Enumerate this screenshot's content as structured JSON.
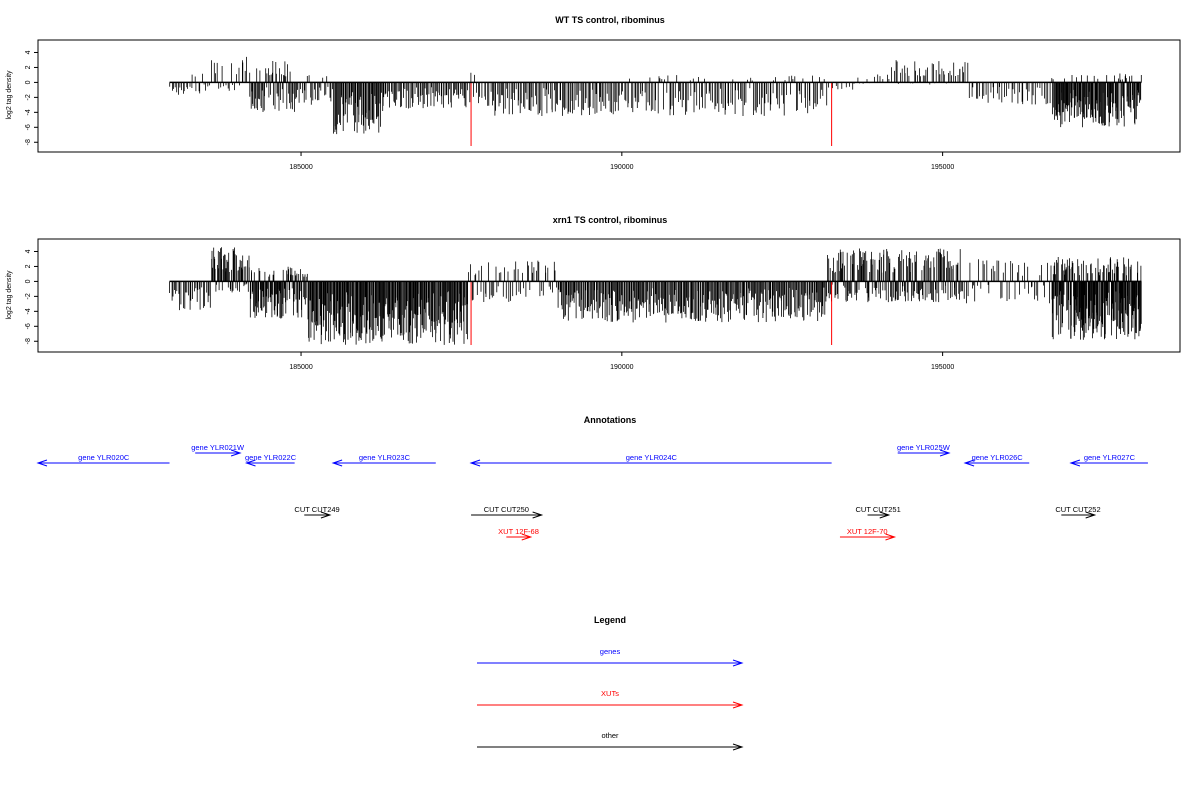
{
  "colors": {
    "gene": "#0000ff",
    "xut": "#ff0000",
    "other": "#000000",
    "marker": "#ff0000",
    "frame": "#000000"
  },
  "chart_data": [
    {
      "type": "bar",
      "title": "WT TS control, ribominus",
      "ylabel": "log2 tag density",
      "xlim": [
        180900,
        198700
      ],
      "ylim": [
        -8.5,
        5
      ],
      "xticks": [
        "185000",
        "190000",
        "195000"
      ],
      "yticks": [
        "4",
        "2",
        "0",
        "-2",
        "-4",
        "-6",
        "-8"
      ],
      "marker_positions": [
        187650,
        193270
      ],
      "marker_value": -8.5,
      "profile": [
        {
          "from": 182950,
          "to": 183300,
          "min": -2.2,
          "max": 0,
          "n": 14
        },
        {
          "from": 183300,
          "to": 183600,
          "min": -1.5,
          "max": 1.2,
          "n": 10
        },
        {
          "from": 183600,
          "to": 184200,
          "min": -1.2,
          "max": 3.6,
          "n": 22
        },
        {
          "from": 184200,
          "to": 184900,
          "min": -4,
          "max": 3,
          "n": 55
        },
        {
          "from": 184900,
          "to": 185500,
          "min": -3,
          "max": 1,
          "n": 28
        },
        {
          "from": 185500,
          "to": 186300,
          "min": -7,
          "max": 0,
          "n": 62
        },
        {
          "from": 186300,
          "to": 187600,
          "min": -3.5,
          "max": 0,
          "n": 70
        },
        {
          "from": 187600,
          "to": 187900,
          "min": -3,
          "max": 2.1,
          "n": 10
        },
        {
          "from": 187900,
          "to": 189800,
          "min": -4.5,
          "max": 0,
          "n": 90
        },
        {
          "from": 189800,
          "to": 193200,
          "min": -4.5,
          "max": 1,
          "n": 150
        },
        {
          "from": 193200,
          "to": 193600,
          "min": -1,
          "max": 0,
          "n": 8
        },
        {
          "from": 193600,
          "to": 194200,
          "min": -0.3,
          "max": 1.1,
          "n": 12
        },
        {
          "from": 194200,
          "to": 195400,
          "min": -0.3,
          "max": 3,
          "n": 45
        },
        {
          "from": 195400,
          "to": 196700,
          "min": -3,
          "max": 0,
          "n": 40
        },
        {
          "from": 196700,
          "to": 198100,
          "min": -6,
          "max": 1.2,
          "n": 150
        }
      ]
    },
    {
      "type": "bar",
      "title": "xrn1 TS control, ribominus",
      "ylabel": "log2 tag density",
      "xlim": [
        180900,
        198700
      ],
      "ylim": [
        -8.5,
        5
      ],
      "xticks": [
        "185000",
        "190000",
        "195000"
      ],
      "yticks": [
        "4",
        "2",
        "0",
        "-2",
        "-4",
        "-6",
        "-8"
      ],
      "marker_positions": [
        187650,
        193270
      ],
      "marker_value": -8.5,
      "profile": [
        {
          "from": 182950,
          "to": 183600,
          "min": -4,
          "max": 0.3,
          "n": 30
        },
        {
          "from": 183600,
          "to": 184200,
          "min": -1.5,
          "max": 4.6,
          "n": 60
        },
        {
          "from": 184200,
          "to": 185100,
          "min": -5,
          "max": 2,
          "n": 100
        },
        {
          "from": 185100,
          "to": 187600,
          "min": -8.5,
          "max": 0.3,
          "n": 230
        },
        {
          "from": 187600,
          "to": 189000,
          "min": -3,
          "max": 2.8,
          "n": 60
        },
        {
          "from": 189000,
          "to": 193200,
          "min": -5.5,
          "max": 0,
          "n": 300
        },
        {
          "from": 193200,
          "to": 195300,
          "min": -2.8,
          "max": 4.4,
          "n": 200
        },
        {
          "from": 195300,
          "to": 196700,
          "min": -3,
          "max": 3,
          "n": 50
        },
        {
          "from": 196700,
          "to": 198100,
          "min": -8,
          "max": 3.3,
          "n": 230
        }
      ]
    }
  ],
  "annotations": {
    "title": "Annotations",
    "features": [
      {
        "label": "gene YLR020C",
        "kind": "gene",
        "from": 182950,
        "to": 180900,
        "row": 1
      },
      {
        "label": "gene YLR021W",
        "kind": "gene",
        "from": 183350,
        "to": 184050,
        "row": 0
      },
      {
        "label": "gene YLR022C",
        "kind": "gene",
        "from": 184900,
        "to": 184150,
        "row": 1
      },
      {
        "label": "gene YLR023C",
        "kind": "gene",
        "from": 187100,
        "to": 185500,
        "row": 1
      },
      {
        "label": "gene YLR024C",
        "kind": "gene",
        "from": 193270,
        "to": 187650,
        "row": 1
      },
      {
        "label": "gene YLR025W",
        "kind": "gene",
        "from": 194300,
        "to": 195100,
        "row": 0
      },
      {
        "label": "gene YLR026C",
        "kind": "gene",
        "from": 196350,
        "to": 195350,
        "row": 1
      },
      {
        "label": "gene YLR027C",
        "kind": "gene",
        "from": 198200,
        "to": 197000,
        "row": 1
      },
      {
        "label": "CUT CUT249",
        "kind": "other",
        "from": 185050,
        "to": 185450,
        "row": 2
      },
      {
        "label": "CUT CUT250",
        "kind": "other",
        "from": 187650,
        "to": 188750,
        "row": 2
      },
      {
        "label": "CUT CUT251",
        "kind": "other",
        "from": 193830,
        "to": 194160,
        "row": 2
      },
      {
        "label": "CUT CUT252",
        "kind": "other",
        "from": 196850,
        "to": 197370,
        "row": 2
      },
      {
        "label": "XUT 12F-68",
        "kind": "xut",
        "from": 188200,
        "to": 188580,
        "row": 3
      },
      {
        "label": "XUT 12F-70",
        "kind": "xut",
        "from": 193400,
        "to": 194250,
        "row": 3
      }
    ]
  },
  "legend": {
    "title": "Legend",
    "items": [
      {
        "label": "genes",
        "kind": "gene"
      },
      {
        "label": "XUTs",
        "kind": "xut"
      },
      {
        "label": "other",
        "kind": "other"
      }
    ]
  }
}
